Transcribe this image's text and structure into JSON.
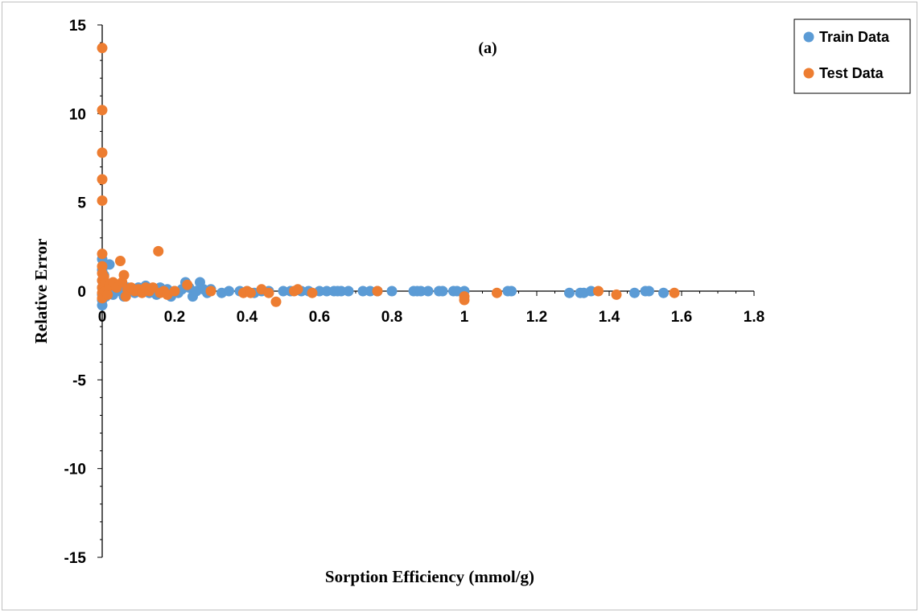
{
  "chart_data": {
    "type": "scatter",
    "title": "",
    "panel_label": "(a)",
    "xlabel": "Sorption Efficiency (mmol/g)",
    "ylabel": "Relative Error",
    "xlim": [
      0,
      1.8
    ],
    "ylim": [
      -15,
      15
    ],
    "x_ticks": [
      "0",
      "0.2",
      "0.4",
      "0.6",
      "0.8",
      "1",
      "1.2",
      "1.4",
      "1.6",
      "1.8"
    ],
    "y_ticks": [
      "15",
      "10",
      "5",
      "0",
      "-5",
      "-10",
      "-15"
    ],
    "grid": false,
    "legend_position": "top-right",
    "series": [
      {
        "name": "Train Data",
        "color": "#5b9bd5",
        "points": [
          [
            0.0,
            1.8
          ],
          [
            0.0,
            1.2
          ],
          [
            0.0,
            0.6
          ],
          [
            0.0,
            0.2
          ],
          [
            0.0,
            -0.2
          ],
          [
            0.0,
            -0.5
          ],
          [
            0.0,
            -0.8
          ],
          [
            0.005,
            0.9
          ],
          [
            0.008,
            0.3
          ],
          [
            0.01,
            -0.3
          ],
          [
            0.02,
            1.5
          ],
          [
            0.02,
            0.4
          ],
          [
            0.025,
            0.1
          ],
          [
            0.03,
            -0.2
          ],
          [
            0.04,
            0.2
          ],
          [
            0.05,
            0.0
          ],
          [
            0.06,
            -0.3
          ],
          [
            0.07,
            0.2
          ],
          [
            0.08,
            0.1
          ],
          [
            0.09,
            -0.1
          ],
          [
            0.1,
            0.2
          ],
          [
            0.11,
            0.0
          ],
          [
            0.12,
            0.3
          ],
          [
            0.13,
            -0.1
          ],
          [
            0.14,
            0.1
          ],
          [
            0.15,
            -0.2
          ],
          [
            0.16,
            0.2
          ],
          [
            0.17,
            0.0
          ],
          [
            0.18,
            0.1
          ],
          [
            0.19,
            -0.3
          ],
          [
            0.2,
            0.0
          ],
          [
            0.21,
            -0.1
          ],
          [
            0.22,
            0.1
          ],
          [
            0.23,
            0.5
          ],
          [
            0.24,
            0.2
          ],
          [
            0.25,
            -0.3
          ],
          [
            0.26,
            0.0
          ],
          [
            0.27,
            0.5
          ],
          [
            0.28,
            0.1
          ],
          [
            0.29,
            -0.1
          ],
          [
            0.3,
            0.1
          ],
          [
            0.33,
            -0.1
          ],
          [
            0.35,
            0.0
          ],
          [
            0.38,
            0.0
          ],
          [
            0.4,
            0.0
          ],
          [
            0.42,
            -0.1
          ],
          [
            0.44,
            0.0
          ],
          [
            0.46,
            0.0
          ],
          [
            0.5,
            0.0
          ],
          [
            0.52,
            0.0
          ],
          [
            0.55,
            0.0
          ],
          [
            0.57,
            0.0
          ],
          [
            0.6,
            0.0
          ],
          [
            0.62,
            0.0
          ],
          [
            0.64,
            0.0
          ],
          [
            0.65,
            0.0
          ],
          [
            0.66,
            0.0
          ],
          [
            0.68,
            0.0
          ],
          [
            0.72,
            0.0
          ],
          [
            0.74,
            0.0
          ],
          [
            0.76,
            0.0
          ],
          [
            0.8,
            0.0
          ],
          [
            0.86,
            0.0
          ],
          [
            0.87,
            0.0
          ],
          [
            0.88,
            0.0
          ],
          [
            0.9,
            0.0
          ],
          [
            0.93,
            0.0
          ],
          [
            0.94,
            0.0
          ],
          [
            0.97,
            0.0
          ],
          [
            0.98,
            0.0
          ],
          [
            1.0,
            0.0
          ],
          [
            1.12,
            0.0
          ],
          [
            1.13,
            0.0
          ],
          [
            1.29,
            -0.1
          ],
          [
            1.32,
            -0.1
          ],
          [
            1.33,
            -0.1
          ],
          [
            1.35,
            0.0
          ],
          [
            1.47,
            -0.1
          ],
          [
            1.5,
            0.0
          ],
          [
            1.51,
            0.0
          ],
          [
            1.55,
            -0.1
          ]
        ]
      },
      {
        "name": "Test Data",
        "color": "#ed7d31",
        "points": [
          [
            0.0,
            13.7
          ],
          [
            0.0,
            10.2
          ],
          [
            0.0,
            7.8
          ],
          [
            0.0,
            6.3
          ],
          [
            0.0,
            5.1
          ],
          [
            0.0,
            2.1
          ],
          [
            0.0,
            1.4
          ],
          [
            0.0,
            1.0
          ],
          [
            0.0,
            0.6
          ],
          [
            0.0,
            0.2
          ],
          [
            0.0,
            -0.1
          ],
          [
            0.0,
            -0.4
          ],
          [
            0.005,
            0.8
          ],
          [
            0.008,
            0.4
          ],
          [
            0.01,
            0.0
          ],
          [
            0.015,
            -0.2
          ],
          [
            0.02,
            0.3
          ],
          [
            0.03,
            0.5
          ],
          [
            0.04,
            0.2
          ],
          [
            0.05,
            1.7
          ],
          [
            0.055,
            0.5
          ],
          [
            0.06,
            0.9
          ],
          [
            0.065,
            -0.3
          ],
          [
            0.07,
            0.1
          ],
          [
            0.08,
            0.2
          ],
          [
            0.09,
            0.0
          ],
          [
            0.1,
            0.1
          ],
          [
            0.11,
            -0.1
          ],
          [
            0.12,
            0.2
          ],
          [
            0.13,
            0.0
          ],
          [
            0.14,
            0.2
          ],
          [
            0.155,
            2.25
          ],
          [
            0.16,
            -0.1
          ],
          [
            0.17,
            0.0
          ],
          [
            0.18,
            -0.2
          ],
          [
            0.2,
            0.0
          ],
          [
            0.235,
            0.35
          ],
          [
            0.3,
            0.0
          ],
          [
            0.39,
            -0.1
          ],
          [
            0.4,
            0.0
          ],
          [
            0.41,
            -0.1
          ],
          [
            0.44,
            0.1
          ],
          [
            0.46,
            -0.1
          ],
          [
            0.48,
            -0.6
          ],
          [
            0.53,
            0.0
          ],
          [
            0.54,
            0.1
          ],
          [
            0.58,
            -0.1
          ],
          [
            0.76,
            0.0
          ],
          [
            1.0,
            -0.3
          ],
          [
            1.0,
            -0.5
          ],
          [
            1.09,
            -0.1
          ],
          [
            1.37,
            0.0
          ],
          [
            1.42,
            -0.2
          ],
          [
            1.58,
            -0.1
          ]
        ]
      }
    ]
  }
}
